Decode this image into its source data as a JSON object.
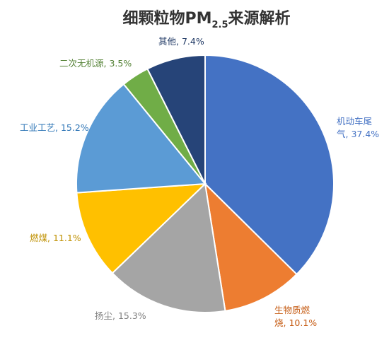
{
  "chart_data": {
    "type": "pie",
    "title_main": "细颗粒物PM",
    "title_sub": "2.5",
    "title_end": "来源解析",
    "slices": [
      {
        "name": "机动车尾气",
        "label_lines": [
          "机动车尾",
          "气, 37.4%"
        ],
        "value": 37.4,
        "color": "#4472C4",
        "label_color": "#4472C4"
      },
      {
        "name": "生物质燃烧",
        "label_lines": [
          "生物质燃",
          "烧, 10.1%"
        ],
        "value": 10.1,
        "color": "#ED7D31",
        "label_color": "#C55A11"
      },
      {
        "name": "扬尘",
        "label_lines": [
          "扬尘, 15.3%"
        ],
        "value": 15.3,
        "color": "#A5A5A5",
        "label_color": "#7F7F7F"
      },
      {
        "name": "燃煤",
        "label_lines": [
          "燃煤, 11.1%"
        ],
        "value": 11.1,
        "color": "#FFC000",
        "label_color": "#BF9000"
      },
      {
        "name": "工业工艺",
        "label_lines": [
          "工业工艺, 15.2%"
        ],
        "value": 15.2,
        "color": "#5B9BD5",
        "label_color": "#2E75B6"
      },
      {
        "name": "二次无机源",
        "label_lines": [
          "二次无机源, 3.5%"
        ],
        "value": 3.5,
        "color": "#70AD47",
        "label_color": "#548235"
      },
      {
        "name": "其他",
        "label_lines": [
          "其他, 7.4%"
        ],
        "value": 7.4,
        "color": "#264478",
        "label_color": "#1F3864"
      }
    ]
  }
}
